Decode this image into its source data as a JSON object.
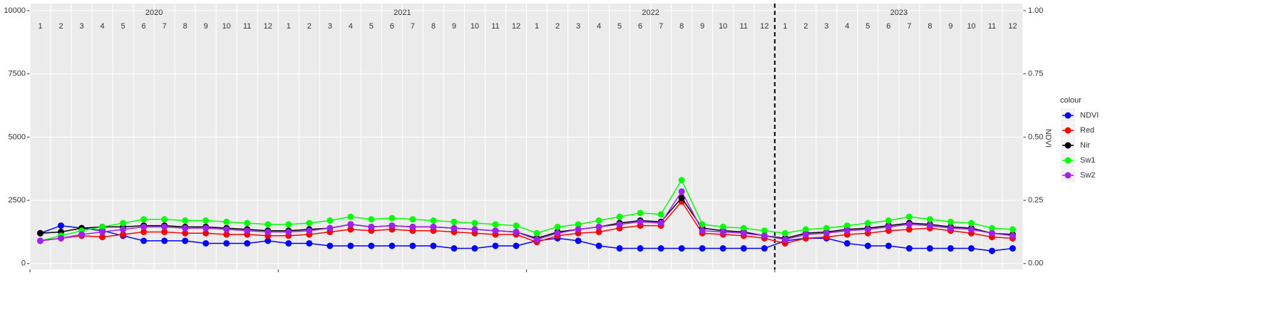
{
  "chart_data": {
    "type": "line",
    "y2_label": "NDVI",
    "legend_title": "colour",
    "legend_position": "right",
    "years": [
      "2020",
      "2021",
      "2022",
      "2023"
    ],
    "months": [
      "1",
      "2",
      "3",
      "4",
      "5",
      "6",
      "7",
      "8",
      "9",
      "10",
      "11",
      "12"
    ],
    "x": [
      "2020-01",
      "2020-02",
      "2020-03",
      "2020-04",
      "2020-05",
      "2020-06",
      "2020-07",
      "2020-08",
      "2020-09",
      "2020-10",
      "2020-11",
      "2020-12",
      "2021-01",
      "2021-02",
      "2021-03",
      "2021-04",
      "2021-05",
      "2021-06",
      "2021-07",
      "2021-08",
      "2021-09",
      "2021-10",
      "2021-11",
      "2021-12",
      "2022-01",
      "2022-02",
      "2022-03",
      "2022-04",
      "2022-05",
      "2022-06",
      "2022-07",
      "2022-08",
      "2022-09",
      "2022-10",
      "2022-11",
      "2022-12",
      "2023-01",
      "2023-02",
      "2023-03",
      "2023-04",
      "2023-05",
      "2023-06",
      "2023-07",
      "2023-08",
      "2023-09",
      "2023-10",
      "2023-11",
      "2023-12"
    ],
    "vline_x": "2023-01",
    "ylim": [
      -230,
      10280
    ],
    "yticks": [
      0,
      2500,
      5000,
      7500,
      10000
    ],
    "y2lim": [
      -0.023,
      1.028
    ],
    "y2ticks": [
      {
        "value": 0,
        "label": "0.00"
      },
      {
        "value": 0.25,
        "label": "0.25"
      },
      {
        "value": 0.5,
        "label": "0.50"
      },
      {
        "value": 0.75,
        "label": "0.75"
      },
      {
        "value": 1,
        "label": "1.00"
      }
    ],
    "grid": true,
    "series": [
      {
        "name": "NDVI",
        "color": "#0000ff",
        "axis": "y2",
        "values": [
          0.12,
          0.15,
          0.14,
          0.13,
          0.11,
          0.09,
          0.09,
          0.09,
          0.08,
          0.08,
          0.08,
          0.09,
          0.08,
          0.08,
          0.07,
          0.07,
          0.07,
          0.07,
          0.07,
          0.07,
          0.06,
          0.06,
          0.07,
          0.07,
          0.09,
          0.1,
          0.09,
          0.07,
          0.06,
          0.06,
          0.06,
          0.06,
          0.06,
          0.06,
          0.06,
          0.06,
          0.09,
          0.1,
          0.1,
          0.08,
          0.07,
          0.07,
          0.06,
          0.06,
          0.06,
          0.06,
          0.05,
          0.06
        ]
      },
      {
        "name": "Red",
        "color": "#ff0000",
        "values": [
          900,
          1000,
          1100,
          1050,
          1150,
          1250,
          1250,
          1200,
          1200,
          1150,
          1150,
          1100,
          1100,
          1150,
          1250,
          1350,
          1300,
          1350,
          1300,
          1300,
          1250,
          1200,
          1150,
          1150,
          850,
          1100,
          1200,
          1250,
          1400,
          1500,
          1500,
          2450,
          1200,
          1150,
          1100,
          1000,
          800,
          1000,
          1050,
          1150,
          1200,
          1300,
          1350,
          1400,
          1300,
          1200,
          1050,
          1000
        ]
      },
      {
        "name": "Nir",
        "color": "#000000",
        "values": [
          1200,
          1250,
          1400,
          1450,
          1450,
          1500,
          1500,
          1450,
          1450,
          1400,
          1350,
          1300,
          1300,
          1350,
          1400,
          1550,
          1450,
          1500,
          1450,
          1450,
          1400,
          1350,
          1300,
          1250,
          1000,
          1250,
          1350,
          1450,
          1600,
          1700,
          1650,
          2600,
          1400,
          1300,
          1250,
          1100,
          1000,
          1200,
          1250,
          1350,
          1400,
          1500,
          1600,
          1550,
          1450,
          1400,
          1200,
          1150
        ]
      },
      {
        "name": "Sw1",
        "color": "#00ff00",
        "values": [
          900,
          1100,
          1300,
          1450,
          1600,
          1750,
          1750,
          1700,
          1700,
          1650,
          1600,
          1550,
          1550,
          1600,
          1700,
          1850,
          1750,
          1800,
          1750,
          1700,
          1650,
          1600,
          1550,
          1500,
          1200,
          1450,
          1550,
          1700,
          1850,
          2000,
          1950,
          3300,
          1550,
          1450,
          1400,
          1300,
          1200,
          1350,
          1400,
          1500,
          1600,
          1700,
          1850,
          1750,
          1650,
          1600,
          1400,
          1350
        ]
      },
      {
        "name": "Sw2",
        "color": "#a020f0",
        "values": [
          900,
          1000,
          1150,
          1250,
          1350,
          1450,
          1450,
          1400,
          1400,
          1350,
          1300,
          1250,
          1250,
          1300,
          1400,
          1550,
          1450,
          1500,
          1450,
          1450,
          1400,
          1350,
          1300,
          1250,
          950,
          1200,
          1350,
          1450,
          1550,
          1650,
          1600,
          2850,
          1300,
          1250,
          1200,
          1100,
          950,
          1150,
          1200,
          1300,
          1350,
          1450,
          1550,
          1500,
          1400,
          1350,
          1200,
          1100
        ]
      }
    ]
  }
}
